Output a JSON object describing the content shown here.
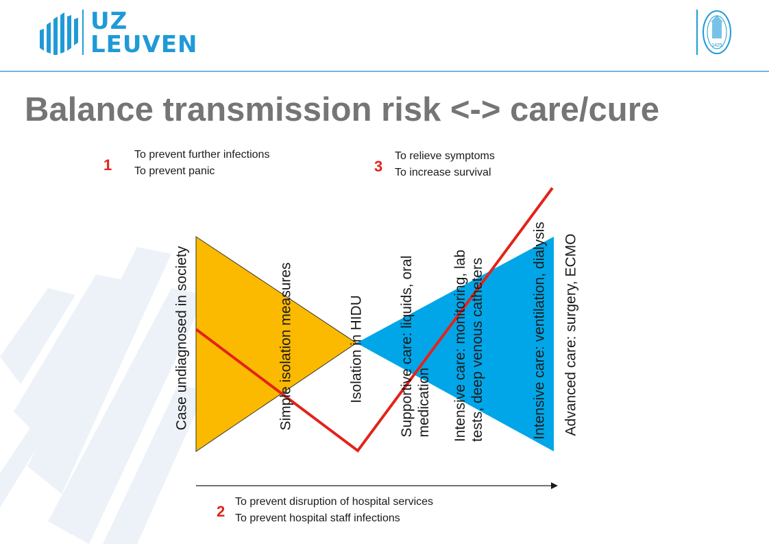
{
  "header": {
    "logo_line1": "UZ",
    "logo_line2": "LEUVEN",
    "seal_year": "1425"
  },
  "title": "Balance transmission risk <-> care/cure",
  "notes": {
    "n1": {
      "number": "1",
      "lines": [
        "To prevent further infections",
        "To prevent panic"
      ]
    },
    "n2": {
      "number": "2",
      "lines": [
        "To prevent disruption of hospital services",
        "To prevent hospital staff infections"
      ]
    },
    "n3": {
      "number": "3",
      "lines": [
        "To relieve symptoms",
        "To increase survival"
      ]
    }
  },
  "stages": [
    {
      "lines": [
        "Case undiagnosed in society"
      ]
    },
    {
      "lines": [
        "Simple isolation measures"
      ]
    },
    {
      "lines": [
        "Isolation in HIDU"
      ]
    },
    {
      "lines": [
        "Supportive care: liquids, oral",
        "medication"
      ]
    },
    {
      "lines": [
        "Intensive care: monitoring, lab",
        "tests, deep venous catheters"
      ]
    },
    {
      "lines": [
        "Intensive care: ventilation, dialysis"
      ]
    },
    {
      "lines": [
        "Advanced care: surgery, ECMO"
      ]
    }
  ],
  "colors": {
    "brand": "#1f9ad7",
    "transmission_triangle": "#fbb900",
    "care_triangle": "#00a6e8",
    "balance_line": "#e2231a",
    "title": "#757575"
  }
}
